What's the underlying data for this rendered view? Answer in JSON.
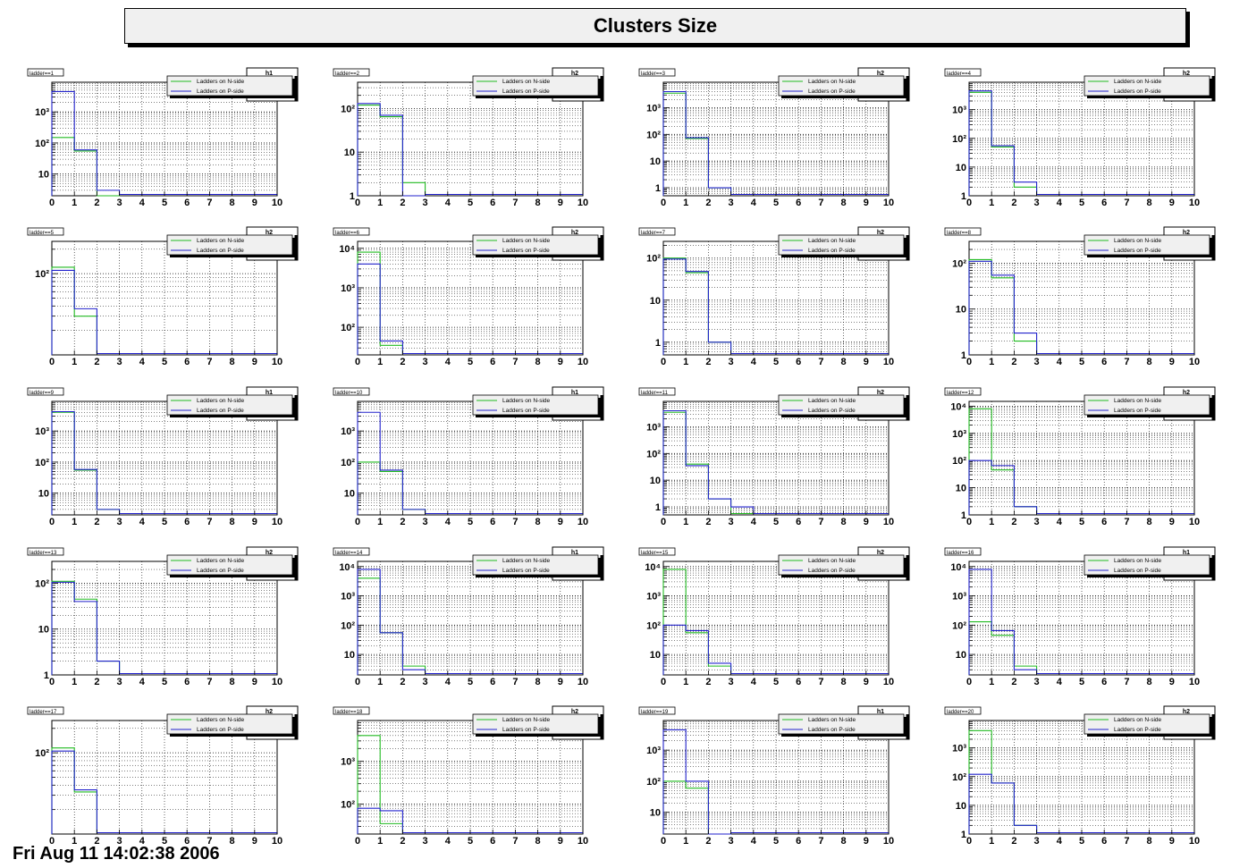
{
  "header": {
    "title": "Clusters Size"
  },
  "footer": {
    "text": "Fri Aug 11 14:02:38 2006"
  },
  "colors": {
    "n_side": "#22bb22",
    "p_side": "#2222cc",
    "frame": "#000000",
    "title_bg": "#f0f0f0"
  },
  "chart_data": [
    {
      "type": "bar",
      "title": "ladder==1",
      "stats": "h1",
      "categories": [
        1,
        2,
        3,
        4,
        5,
        6,
        7,
        8,
        9,
        10
      ],
      "yscale": "log",
      "ylim": [
        2,
        9000
      ],
      "ytick_values": [
        10,
        100,
        1000
      ],
      "ytick_labels": [
        "10",
        "10²",
        "10³"
      ],
      "series": [
        {
          "name": "Ladders on N-side",
          "values": [
            150,
            55,
            2,
            0,
            0,
            0,
            0,
            0,
            0,
            0
          ]
        },
        {
          "name": "Ladders on P-side",
          "values": [
            4500,
            60,
            3,
            0,
            0,
            0,
            0,
            0,
            0,
            0
          ]
        }
      ]
    },
    {
      "type": "bar",
      "title": "ladder==2",
      "stats": "h2",
      "categories": [
        1,
        2,
        3,
        4,
        5,
        6,
        7,
        8,
        9,
        10
      ],
      "yscale": "log",
      "ylim": [
        1,
        400
      ],
      "ytick_values": [
        1,
        10,
        100
      ],
      "ytick_labels": [
        "1",
        "10",
        "10²"
      ],
      "series": [
        {
          "name": "Ladders on N-side",
          "values": [
            120,
            65,
            2,
            0,
            0,
            0,
            0,
            0,
            0,
            0
          ]
        },
        {
          "name": "Ladders on P-side",
          "values": [
            130,
            70,
            1,
            0,
            0,
            0,
            0,
            0,
            0,
            0
          ]
        }
      ]
    },
    {
      "type": "bar",
      "title": "ladder==3",
      "stats": "h2",
      "categories": [
        1,
        2,
        3,
        4,
        5,
        6,
        7,
        8,
        9,
        10
      ],
      "yscale": "log",
      "ylim": [
        0.5,
        9000
      ],
      "ytick_values": [
        1,
        10,
        100,
        1000
      ],
      "ytick_labels": [
        "1",
        "10",
        "10²",
        "10³"
      ],
      "series": [
        {
          "name": "Ladders on N-side",
          "values": [
            3500,
            70,
            1,
            0,
            0,
            0,
            0,
            0,
            0,
            0
          ]
        },
        {
          "name": "Ladders on P-side",
          "values": [
            4000,
            75,
            1,
            0,
            0,
            0,
            0,
            0,
            0,
            0
          ]
        }
      ]
    },
    {
      "type": "bar",
      "title": "ladder==4",
      "stats": "h2",
      "categories": [
        1,
        2,
        3,
        4,
        5,
        6,
        7,
        8,
        9,
        10
      ],
      "yscale": "log",
      "ylim": [
        1,
        9000
      ],
      "ytick_values": [
        1,
        10,
        100,
        1000
      ],
      "ytick_labels": [
        "1",
        "10",
        "10²",
        "10³"
      ],
      "series": [
        {
          "name": "Ladders on N-side",
          "values": [
            4000,
            50,
            2,
            0,
            0,
            0,
            0,
            0,
            0,
            0
          ]
        },
        {
          "name": "Ladders on P-side",
          "values": [
            4500,
            55,
            3,
            0,
            0,
            0,
            0,
            0,
            0,
            0
          ]
        }
      ]
    },
    {
      "type": "bar",
      "title": "ladder==5",
      "stats": "h2",
      "categories": [
        1,
        2,
        3,
        4,
        5,
        6,
        7,
        8,
        9,
        10
      ],
      "yscale": "log",
      "ylim": [
        10,
        250
      ],
      "ytick_values": [
        100
      ],
      "ytick_labels": [
        "10²"
      ],
      "series": [
        {
          "name": "Ladders on N-side",
          "values": [
            120,
            30,
            0,
            0,
            0,
            0,
            0,
            0,
            0,
            0
          ]
        },
        {
          "name": "Ladders on P-side",
          "values": [
            110,
            37,
            0,
            0,
            0,
            0,
            0,
            0,
            0,
            0
          ]
        }
      ]
    },
    {
      "type": "bar",
      "title": "ladder==6",
      "stats": "h2",
      "categories": [
        1,
        2,
        3,
        4,
        5,
        6,
        7,
        8,
        9,
        10
      ],
      "yscale": "log",
      "ylim": [
        20,
        15000
      ],
      "ytick_values": [
        100,
        1000,
        10000
      ],
      "ytick_labels": [
        "10²",
        "10³",
        "10⁴"
      ],
      "series": [
        {
          "name": "Ladders on N-side",
          "values": [
            8000,
            35,
            0,
            0,
            0,
            0,
            0,
            0,
            0,
            0
          ]
        },
        {
          "name": "Ladders on P-side",
          "values": [
            4000,
            45,
            0,
            0,
            0,
            0,
            0,
            0,
            0,
            0
          ]
        }
      ]
    },
    {
      "type": "bar",
      "title": "ladder==7",
      "stats": "h2",
      "categories": [
        1,
        2,
        3,
        4,
        5,
        6,
        7,
        8,
        9,
        10
      ],
      "yscale": "log",
      "ylim": [
        0.5,
        250
      ],
      "ytick_values": [
        1,
        10,
        100
      ],
      "ytick_labels": [
        "1",
        "10",
        "10²"
      ],
      "series": [
        {
          "name": "Ladders on N-side",
          "values": [
            100,
            45,
            1,
            0,
            0,
            0,
            0,
            0,
            0,
            0
          ]
        },
        {
          "name": "Ladders on P-side",
          "values": [
            95,
            48,
            1,
            0,
            0,
            0,
            0,
            0,
            0,
            0
          ]
        }
      ]
    },
    {
      "type": "bar",
      "title": "ladder==8",
      "stats": "h2",
      "categories": [
        1,
        2,
        3,
        4,
        5,
        6,
        7,
        8,
        9,
        10
      ],
      "yscale": "log",
      "ylim": [
        1,
        300
      ],
      "ytick_values": [
        1,
        10,
        100
      ],
      "ytick_labels": [
        "1",
        "10",
        "10²"
      ],
      "series": [
        {
          "name": "Ladders on N-side",
          "values": [
            120,
            48,
            2,
            0,
            0,
            0,
            0,
            0,
            0,
            0
          ]
        },
        {
          "name": "Ladders on P-side",
          "values": [
            110,
            55,
            3,
            0,
            0,
            0,
            0,
            0,
            0,
            0
          ]
        }
      ]
    },
    {
      "type": "bar",
      "title": "ladder==9",
      "stats": "h1",
      "categories": [
        1,
        2,
        3,
        4,
        5,
        6,
        7,
        8,
        9,
        10
      ],
      "yscale": "log",
      "ylim": [
        2,
        9000
      ],
      "ytick_values": [
        10,
        100,
        1000
      ],
      "ytick_labels": [
        "10",
        "10²",
        "10³"
      ],
      "series": [
        {
          "name": "Ladders on N-side",
          "values": [
            4000,
            55,
            3,
            0,
            0,
            0,
            0,
            0,
            0,
            0
          ]
        },
        {
          "name": "Ladders on P-side",
          "values": [
            4200,
            58,
            3,
            0,
            0,
            0,
            0,
            0,
            0,
            0
          ]
        }
      ]
    },
    {
      "type": "bar",
      "title": "ladder==10",
      "stats": "h1",
      "categories": [
        1,
        2,
        3,
        4,
        5,
        6,
        7,
        8,
        9,
        10
      ],
      "yscale": "log",
      "ylim": [
        2,
        9000
      ],
      "ytick_values": [
        10,
        100,
        1000
      ],
      "ytick_labels": [
        "10",
        "10²",
        "10³"
      ],
      "series": [
        {
          "name": "Ladders on N-side",
          "values": [
            100,
            50,
            3,
            0,
            0,
            0,
            0,
            0,
            0,
            0
          ]
        },
        {
          "name": "Ladders on P-side",
          "values": [
            4000,
            55,
            3,
            0,
            0,
            0,
            0,
            0,
            0,
            0
          ]
        }
      ]
    },
    {
      "type": "bar",
      "title": "ladder==11",
      "stats": "h2",
      "categories": [
        1,
        2,
        3,
        4,
        5,
        6,
        7,
        8,
        9,
        10
      ],
      "yscale": "log",
      "ylim": [
        0.5,
        9000
      ],
      "ytick_values": [
        1,
        10,
        100,
        1000
      ],
      "ytick_labels": [
        "1",
        "10",
        "10²",
        "10³"
      ],
      "series": [
        {
          "name": "Ladders on N-side",
          "values": [
            3500,
            40,
            2,
            0,
            0,
            0,
            0,
            0,
            0,
            0
          ]
        },
        {
          "name": "Ladders on P-side",
          "values": [
            4000,
            35,
            2,
            1,
            0,
            0,
            0,
            0,
            0,
            0
          ]
        }
      ]
    },
    {
      "type": "bar",
      "title": "ladder==12",
      "stats": "h2",
      "categories": [
        1,
        2,
        3,
        4,
        5,
        6,
        7,
        8,
        9,
        10
      ],
      "yscale": "log",
      "ylim": [
        1,
        15000
      ],
      "ytick_values": [
        1,
        10,
        100,
        1000,
        10000
      ],
      "ytick_labels": [
        "1",
        "10",
        "10²",
        "10³",
        "10⁴"
      ],
      "series": [
        {
          "name": "Ladders on N-side",
          "values": [
            8000,
            45,
            2,
            0,
            0,
            0,
            0,
            0,
            0,
            0
          ]
        },
        {
          "name": "Ladders on P-side",
          "values": [
            100,
            65,
            2,
            0,
            0,
            0,
            0,
            0,
            0,
            0
          ]
        }
      ]
    },
    {
      "type": "bar",
      "title": "ladder==13",
      "stats": "h2",
      "categories": [
        1,
        2,
        3,
        4,
        5,
        6,
        7,
        8,
        9,
        10
      ],
      "yscale": "log",
      "ylim": [
        1,
        300
      ],
      "ytick_values": [
        1,
        10,
        100
      ],
      "ytick_labels": [
        "1",
        "10",
        "10²"
      ],
      "series": [
        {
          "name": "Ladders on N-side",
          "values": [
            110,
            45,
            2,
            0,
            0,
            0,
            0,
            0,
            0,
            0
          ]
        },
        {
          "name": "Ladders on P-side",
          "values": [
            105,
            40,
            2,
            0,
            0,
            0,
            0,
            0,
            0,
            0
          ]
        }
      ]
    },
    {
      "type": "bar",
      "title": "ladder==14",
      "stats": "h1",
      "categories": [
        1,
        2,
        3,
        4,
        5,
        6,
        7,
        8,
        9,
        10
      ],
      "yscale": "log",
      "ylim": [
        2,
        15000
      ],
      "ytick_values": [
        10,
        100,
        1000,
        10000
      ],
      "ytick_labels": [
        "10",
        "10²",
        "10³",
        "10⁴"
      ],
      "series": [
        {
          "name": "Ladders on N-side",
          "values": [
            4000,
            55,
            4,
            0,
            0,
            0,
            0,
            0,
            0,
            0
          ]
        },
        {
          "name": "Ladders on P-side",
          "values": [
            8000,
            55,
            3,
            0,
            0,
            0,
            0,
            0,
            0,
            0
          ]
        }
      ]
    },
    {
      "type": "bar",
      "title": "ladder==15",
      "stats": "h2",
      "categories": [
        1,
        2,
        3,
        4,
        5,
        6,
        7,
        8,
        9,
        10
      ],
      "yscale": "log",
      "ylim": [
        2,
        15000
      ],
      "ytick_values": [
        10,
        100,
        1000,
        10000
      ],
      "ytick_labels": [
        "10",
        "10²",
        "10³",
        "10⁴"
      ],
      "series": [
        {
          "name": "Ladders on N-side",
          "values": [
            8000,
            55,
            4,
            0,
            0,
            0,
            0,
            0,
            0,
            0
          ]
        },
        {
          "name": "Ladders on P-side",
          "values": [
            100,
            65,
            5,
            0,
            0,
            0,
            0,
            0,
            0,
            0
          ]
        }
      ]
    },
    {
      "type": "bar",
      "title": "ladder==16",
      "stats": "h1",
      "categories": [
        1,
        2,
        3,
        4,
        5,
        6,
        7,
        8,
        9,
        10
      ],
      "yscale": "log",
      "ylim": [
        2,
        15000
      ],
      "ytick_values": [
        10,
        100,
        1000,
        10000
      ],
      "ytick_labels": [
        "10",
        "10²",
        "10³",
        "10⁴"
      ],
      "series": [
        {
          "name": "Ladders on N-side",
          "values": [
            130,
            45,
            4,
            0,
            0,
            0,
            0,
            0,
            0,
            0
          ]
        },
        {
          "name": "Ladders on P-side",
          "values": [
            8000,
            65,
            3,
            0,
            0,
            0,
            0,
            0,
            0,
            0
          ]
        }
      ]
    },
    {
      "type": "bar",
      "title": "ladder==17",
      "stats": "h2",
      "categories": [
        1,
        2,
        3,
        4,
        5,
        6,
        7,
        8,
        9,
        10
      ],
      "yscale": "log",
      "ylim": [
        10,
        250
      ],
      "ytick_values": [
        100
      ],
      "ytick_labels": [
        "10²"
      ],
      "series": [
        {
          "name": "Ladders on N-side",
          "values": [
            115,
            33,
            0,
            0,
            0,
            0,
            0,
            0,
            0,
            0
          ]
        },
        {
          "name": "Ladders on P-side",
          "values": [
            105,
            35,
            0,
            0,
            0,
            0,
            0,
            0,
            0,
            0
          ]
        }
      ]
    },
    {
      "type": "bar",
      "title": "ladder==18",
      "stats": "h2",
      "categories": [
        1,
        2,
        3,
        4,
        5,
        6,
        7,
        8,
        9,
        10
      ],
      "yscale": "log",
      "ylim": [
        20,
        9000
      ],
      "ytick_values": [
        100,
        1000
      ],
      "ytick_labels": [
        "10²",
        "10³"
      ],
      "series": [
        {
          "name": "Ladders on N-side",
          "values": [
            4000,
            35,
            0,
            0,
            0,
            0,
            0,
            0,
            0,
            0
          ]
        },
        {
          "name": "Ladders on P-side",
          "values": [
            80,
            70,
            0,
            0,
            0,
            0,
            0,
            0,
            0,
            0
          ]
        }
      ]
    },
    {
      "type": "bar",
      "title": "ladder==19",
      "stats": "h1",
      "categories": [
        1,
        2,
        3,
        4,
        5,
        6,
        7,
        8,
        9,
        10
      ],
      "yscale": "log",
      "ylim": [
        2,
        9000
      ],
      "ytick_values": [
        10,
        100,
        1000
      ],
      "ytick_labels": [
        "10",
        "10²",
        "10³"
      ],
      "series": [
        {
          "name": "Ladders on N-side",
          "values": [
            100,
            60,
            2,
            0,
            0,
            0,
            0,
            0,
            0,
            0
          ]
        },
        {
          "name": "Ladders on P-side",
          "values": [
            4500,
            100,
            2,
            0,
            0,
            0,
            0,
            0,
            0,
            0
          ]
        }
      ]
    },
    {
      "type": "bar",
      "title": "ladder==20",
      "stats": "h2",
      "categories": [
        1,
        2,
        3,
        4,
        5,
        6,
        7,
        8,
        9,
        10
      ],
      "yscale": "log",
      "ylim": [
        1,
        9000
      ],
      "ytick_values": [
        1,
        10,
        100,
        1000
      ],
      "ytick_labels": [
        "1",
        "10",
        "10²",
        "10³"
      ],
      "series": [
        {
          "name": "Ladders on N-side",
          "values": [
            4000,
            60,
            2,
            0,
            0,
            0,
            0,
            0,
            0,
            0
          ]
        },
        {
          "name": "Ladders on P-side",
          "values": [
            120,
            60,
            2,
            0,
            0,
            0,
            0,
            0,
            0,
            0
          ]
        }
      ]
    }
  ]
}
